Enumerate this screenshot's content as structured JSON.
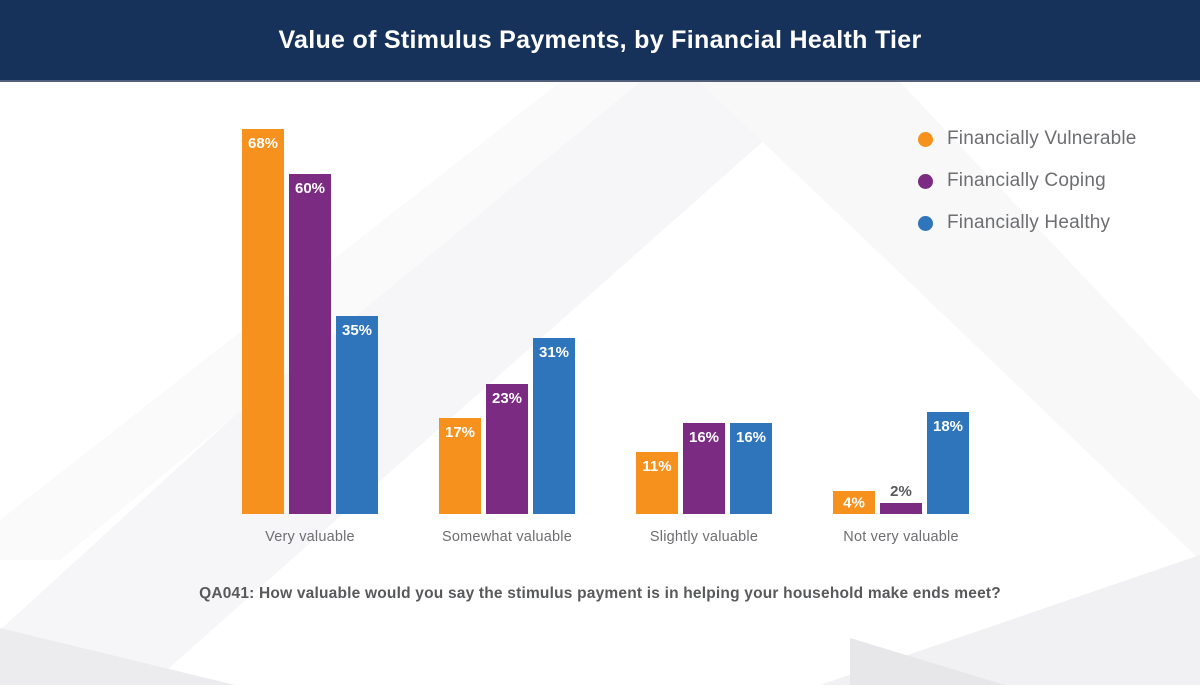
{
  "header": {
    "bg_color": "#17325A",
    "border_color": "#51607A",
    "title_color": "#FFFFFF"
  },
  "chart_data": {
    "type": "bar",
    "title": "Value of Stimulus Payments, by Financial Health Tier",
    "categories": [
      "Very valuable",
      "Somewhat valuable",
      "Slightly valuable",
      "Not very valuable"
    ],
    "series": [
      {
        "name": "Financially Vulnerable",
        "color": "#F6911E",
        "values": [
          68,
          17,
          11,
          4
        ]
      },
      {
        "name": "Financially Coping",
        "color": "#7C2B83",
        "values": [
          60,
          23,
          16,
          2
        ]
      },
      {
        "name": "Financially Healthy",
        "color": "#2E75BB",
        "values": [
          35,
          31,
          16,
          18
        ]
      }
    ],
    "value_suffix": "%",
    "data_labels": "on",
    "ylim": [
      0,
      100
    ],
    "grid": false,
    "axes_hidden": true,
    "legend_position": "top-right",
    "footnote": "QA041: How valuable would you say the stimulus payment is in helping your household make ends meet?"
  },
  "colors": {
    "label_inside": "#FFFFFF",
    "label_outside": "#58595B",
    "category_label": "#6D6E71",
    "legend_label": "#6D6E71",
    "footnote": "#58595B"
  }
}
